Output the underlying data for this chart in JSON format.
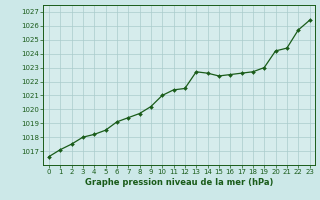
{
  "x": [
    0,
    1,
    2,
    3,
    4,
    5,
    6,
    7,
    8,
    9,
    10,
    11,
    12,
    13,
    14,
    15,
    16,
    17,
    18,
    19,
    20,
    21,
    22,
    23
  ],
  "y": [
    1016.6,
    1017.1,
    1017.5,
    1018.0,
    1018.2,
    1018.5,
    1019.1,
    1019.4,
    1019.7,
    1020.2,
    1021.0,
    1021.4,
    1021.5,
    1022.7,
    1022.6,
    1022.4,
    1022.5,
    1022.6,
    1022.7,
    1023.0,
    1024.2,
    1024.4,
    1025.7,
    1026.4
  ],
  "line_color": "#1a5c1a",
  "marker_color": "#1a5c1a",
  "background_color": "#cce8e8",
  "grid_color": "#aacccc",
  "xlabel": "Graphe pression niveau de la mer (hPa)",
  "title_color": "#1a5c1a",
  "xlim": [
    -0.5,
    23.5
  ],
  "ylim": [
    1016.0,
    1027.5
  ],
  "yticks": [
    1017,
    1018,
    1019,
    1020,
    1021,
    1022,
    1023,
    1024,
    1025,
    1026,
    1027
  ],
  "xticks": [
    0,
    1,
    2,
    3,
    4,
    5,
    6,
    7,
    8,
    9,
    10,
    11,
    12,
    13,
    14,
    15,
    16,
    17,
    18,
    19,
    20,
    21,
    22,
    23
  ],
  "plot_bg": "#d6ecec",
  "border_color": "#1a5c1a"
}
